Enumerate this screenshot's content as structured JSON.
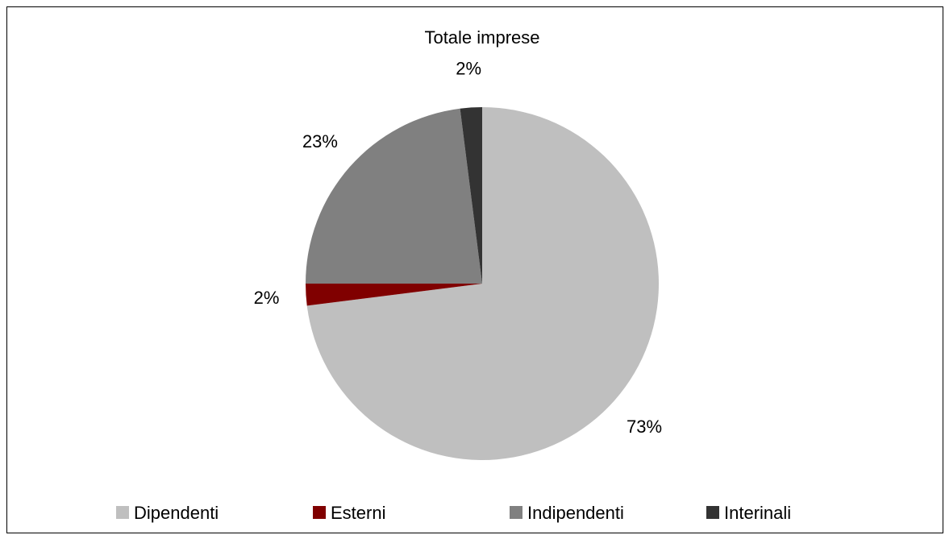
{
  "chart_data": {
    "type": "pie",
    "title": "Totale imprese",
    "categories": [
      "Dipendenti",
      "Esterni",
      "Indipendenti",
      "Interinali"
    ],
    "values": [
      73,
      2,
      23,
      2
    ],
    "data_labels": [
      "73%",
      "2%",
      "23%",
      "2%"
    ],
    "colors": [
      "#bfbfbf",
      "#800000",
      "#808080",
      "#333333"
    ],
    "start_angle_deg": 0,
    "direction": "clockwise",
    "legend": {
      "position": "bottom",
      "entries": [
        "Dipendenti",
        "Esterni",
        "Indipendenti",
        "Interinali"
      ]
    }
  }
}
